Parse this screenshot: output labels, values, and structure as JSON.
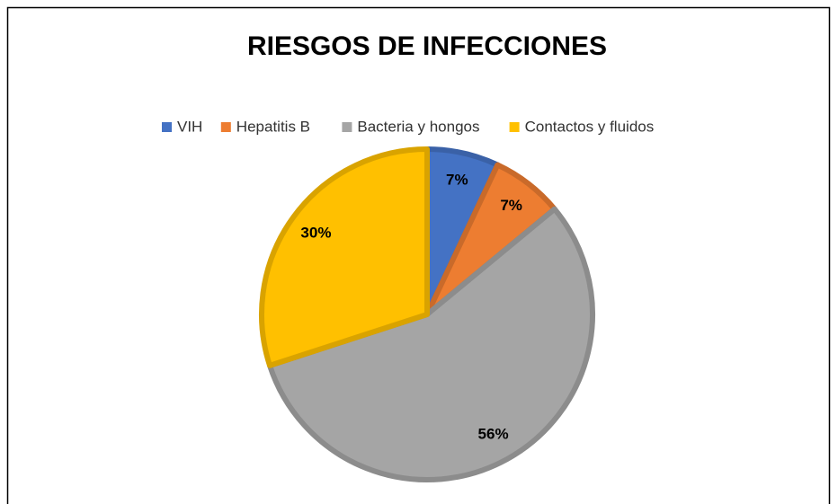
{
  "chart_data": {
    "type": "pie",
    "title": "RIESGOS DE INFECCIONES",
    "categories": [
      "VIH",
      "Hepatitis B",
      "Bacteria y hongos",
      "Contactos y fluidos"
    ],
    "values": [
      7,
      7,
      56,
      30
    ],
    "value_labels": [
      "7%",
      "7%",
      "56%",
      "30%"
    ],
    "colors": [
      "#4472c4",
      "#ed7d31",
      "#a5a5a5",
      "#ffc000"
    ],
    "legend": "top"
  }
}
